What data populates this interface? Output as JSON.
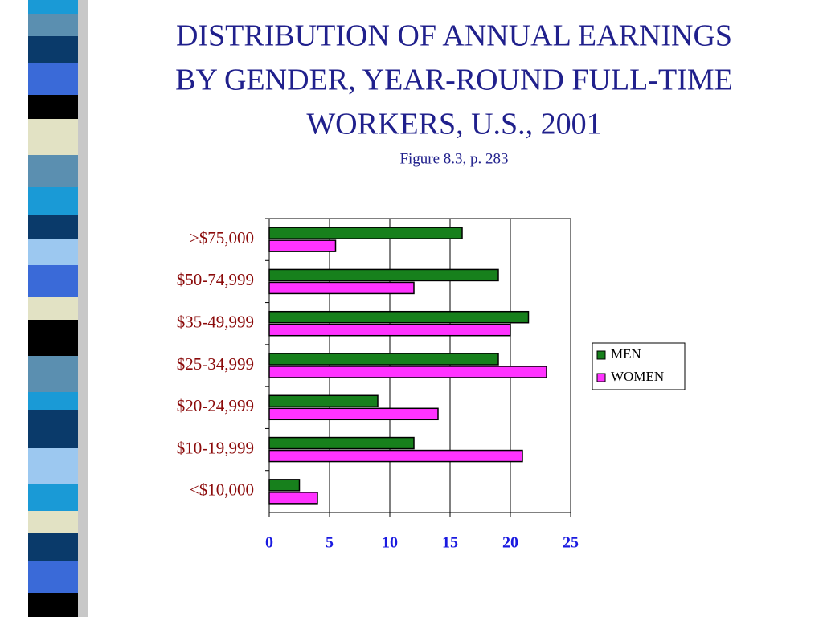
{
  "chart_data": {
    "type": "hbar",
    "title": [
      "DISTRIBUTION OF ANNUAL EARNINGS",
      "BY GENDER, YEAR-ROUND FULL-TIME",
      "WORKERS, U.S., 2001"
    ],
    "subtitle": "Figure 8.3, p. 283",
    "categories": [
      ">$75,000",
      "$50-74,999",
      "$35-49,999",
      "$25-34,999",
      "$20-24,999",
      "$10-19,999",
      "<$10,000"
    ],
    "series": [
      {
        "name": "MEN",
        "color": "#17801c",
        "values": [
          16,
          19,
          21.5,
          19,
          9,
          12,
          2.5
        ]
      },
      {
        "name": "WOMEN",
        "color": "#ff33ff",
        "values": [
          5.5,
          12,
          20,
          23,
          14,
          21,
          4
        ]
      }
    ],
    "xlim": [
      0,
      25
    ],
    "xticks": [
      0,
      5,
      10,
      15,
      20,
      25
    ],
    "grid": true,
    "legend": "right"
  }
}
